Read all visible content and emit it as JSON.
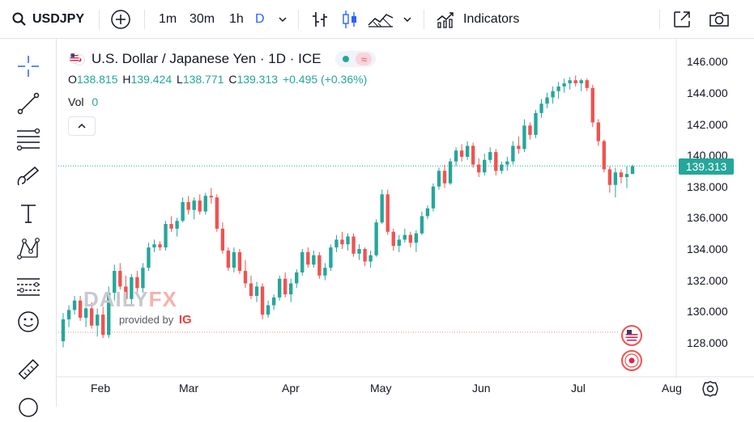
{
  "toolbar": {
    "symbol": "USDJPY",
    "intervals": [
      "1m",
      "30m",
      "1h",
      "D"
    ],
    "active_interval": "D",
    "indicators_label": "Indicators",
    "icons": [
      "search-icon",
      "add-symbol-icon",
      "chevron-down-icon",
      "bar-style-icon",
      "candle-style-icon",
      "area-style-icon",
      "indicators-icon",
      "fullscreen-icon",
      "camera-icon"
    ]
  },
  "left_tools": [
    "crosshair-icon",
    "trend-line-icon",
    "fib-lines-icon",
    "brush-icon",
    "text-icon",
    "pattern-icon",
    "measure-icon",
    "emoji-icon",
    "ruler-icon",
    "magnet-icon"
  ],
  "legend": {
    "title": "U.S. Dollar / Japanese Yen · 1D · ICE",
    "open_label": "O",
    "open": "138.815",
    "high_label": "H",
    "high": "139.424",
    "low_label": "L",
    "low": "138.771",
    "close_label": "C",
    "close": "139.313",
    "change": "+0.495 (+0.36%)",
    "vol_label": "Vol",
    "vol_value": "0"
  },
  "price_axis": [
    "146.000",
    "144.000",
    "142.000",
    "140.000",
    "138.000",
    "136.000",
    "134.000",
    "132.000",
    "130.000",
    "128.000"
  ],
  "last_price": "139.313",
  "time_axis": [
    "Feb",
    "Mar",
    "Apr",
    "May",
    "Jun",
    "Jul",
    "Aug"
  ],
  "watermark": {
    "brand_left": "DAILY",
    "brand_right": "FX",
    "provided_by": "provided by",
    "ig": "IG"
  },
  "colors": {
    "up": "#26a69a",
    "down": "#ef5350",
    "accent": "#2962ff"
  },
  "chart_data": {
    "type": "candlestick",
    "title": "U.S. Dollar / Japanese Yen · 1D · ICE",
    "ylim": [
      127,
      147
    ],
    "x_labels": [
      "Feb",
      "Mar",
      "Apr",
      "May",
      "Jun",
      "Jul",
      "Aug"
    ],
    "ohlc": [
      [
        128.1,
        129.9,
        127.7,
        129.5
      ],
      [
        129.5,
        130.4,
        129.0,
        130.1
      ],
      [
        130.1,
        131.0,
        129.8,
        130.7
      ],
      [
        130.7,
        131.0,
        129.4,
        129.6
      ],
      [
        129.6,
        130.3,
        129.0,
        130.2
      ],
      [
        130.2,
        130.6,
        128.9,
        129.1
      ],
      [
        129.1,
        130.2,
        128.4,
        129.8
      ],
      [
        129.8,
        130.3,
        128.3,
        128.5
      ],
      [
        128.5,
        131.6,
        128.3,
        131.2
      ],
      [
        131.2,
        133.0,
        130.7,
        132.6
      ],
      [
        132.6,
        133.1,
        131.4,
        131.6
      ],
      [
        131.6,
        132.3,
        130.5,
        130.8
      ],
      [
        130.8,
        132.4,
        130.4,
        132.2
      ],
      [
        132.2,
        132.6,
        131.2,
        131.5
      ],
      [
        131.5,
        133.1,
        131.2,
        132.8
      ],
      [
        132.8,
        134.4,
        132.6,
        134.1
      ],
      [
        134.1,
        134.6,
        133.8,
        134.3
      ],
      [
        134.3,
        134.5,
        133.9,
        134.1
      ],
      [
        134.1,
        135.8,
        133.9,
        135.6
      ],
      [
        135.6,
        136.1,
        135.1,
        135.3
      ],
      [
        135.3,
        136.0,
        134.8,
        135.8
      ],
      [
        135.8,
        137.3,
        135.7,
        137.0
      ],
      [
        137.0,
        137.4,
        136.2,
        136.5
      ],
      [
        136.5,
        137.3,
        135.9,
        137.1
      ],
      [
        137.1,
        137.5,
        136.2,
        136.4
      ],
      [
        136.4,
        137.6,
        136.2,
        137.4
      ],
      [
        137.4,
        137.9,
        136.9,
        137.3
      ],
      [
        137.3,
        137.5,
        135.1,
        135.3
      ],
      [
        135.3,
        135.7,
        133.7,
        133.9
      ],
      [
        133.9,
        134.1,
        132.6,
        132.8
      ],
      [
        132.8,
        134.1,
        132.5,
        133.8
      ],
      [
        133.8,
        134.0,
        132.4,
        132.6
      ],
      [
        132.6,
        133.3,
        131.5,
        131.8
      ],
      [
        131.8,
        132.3,
        130.8,
        131.0
      ],
      [
        131.0,
        131.9,
        130.6,
        131.6
      ],
      [
        131.6,
        131.8,
        129.5,
        129.8
      ],
      [
        129.8,
        130.7,
        129.6,
        130.4
      ],
      [
        130.4,
        131.1,
        130.1,
        130.9
      ],
      [
        130.9,
        132.3,
        130.7,
        132.1
      ],
      [
        132.1,
        132.5,
        130.9,
        131.1
      ],
      [
        131.1,
        132.1,
        130.6,
        131.8
      ],
      [
        131.8,
        132.7,
        131.5,
        132.5
      ],
      [
        132.5,
        134.0,
        132.3,
        133.8
      ],
      [
        133.8,
        134.1,
        132.8,
        133.0
      ],
      [
        133.0,
        133.9,
        132.8,
        133.6
      ],
      [
        133.6,
        133.8,
        132.1,
        132.3
      ],
      [
        132.3,
        133.1,
        132.0,
        132.8
      ],
      [
        132.8,
        134.3,
        132.6,
        134.1
      ],
      [
        134.1,
        134.9,
        133.8,
        134.6
      ],
      [
        134.6,
        135.1,
        134.0,
        134.3
      ],
      [
        134.3,
        135.0,
        133.9,
        134.8
      ],
      [
        134.8,
        135.0,
        133.5,
        133.7
      ],
      [
        133.7,
        134.3,
        133.3,
        134.0
      ],
      [
        134.0,
        134.1,
        132.9,
        133.2
      ],
      [
        133.2,
        133.9,
        132.8,
        133.6
      ],
      [
        133.6,
        135.9,
        133.5,
        135.7
      ],
      [
        135.7,
        137.8,
        135.6,
        137.5
      ],
      [
        137.5,
        137.8,
        134.9,
        135.1
      ],
      [
        135.1,
        135.3,
        133.9,
        134.2
      ],
      [
        134.2,
        134.9,
        133.8,
        134.6
      ],
      [
        134.6,
        135.3,
        134.4,
        134.9
      ],
      [
        134.9,
        135.1,
        134.1,
        134.4
      ],
      [
        134.4,
        135.2,
        133.8,
        135.0
      ],
      [
        135.0,
        136.4,
        134.9,
        136.1
      ],
      [
        136.1,
        136.8,
        135.9,
        136.6
      ],
      [
        136.6,
        138.2,
        136.4,
        138.0
      ],
      [
        138.0,
        139.2,
        137.8,
        139.0
      ],
      [
        139.0,
        139.4,
        137.9,
        138.2
      ],
      [
        138.2,
        139.8,
        138.1,
        139.6
      ],
      [
        139.6,
        140.5,
        139.3,
        140.3
      ],
      [
        140.3,
        140.7,
        139.6,
        139.9
      ],
      [
        139.9,
        140.9,
        139.7,
        140.6
      ],
      [
        140.6,
        140.8,
        139.2,
        139.4
      ],
      [
        139.4,
        139.8,
        138.6,
        138.9
      ],
      [
        138.9,
        140.1,
        138.7,
        139.7
      ],
      [
        139.7,
        140.5,
        139.5,
        140.2
      ],
      [
        140.2,
        140.4,
        138.7,
        139.0
      ],
      [
        139.0,
        139.6,
        138.8,
        139.4
      ],
      [
        139.4,
        139.9,
        139.0,
        139.6
      ],
      [
        139.6,
        140.9,
        139.4,
        140.6
      ],
      [
        140.6,
        141.2,
        140.1,
        140.4
      ],
      [
        140.4,
        142.3,
        140.2,
        141.9
      ],
      [
        141.9,
        142.1,
        141.0,
        141.3
      ],
      [
        141.3,
        142.9,
        141.1,
        142.7
      ],
      [
        142.7,
        143.6,
        142.4,
        143.3
      ],
      [
        143.3,
        144.0,
        143.0,
        143.7
      ],
      [
        143.7,
        144.4,
        143.3,
        144.1
      ],
      [
        144.1,
        144.7,
        143.6,
        144.4
      ],
      [
        144.4,
        144.9,
        144.0,
        144.6
      ],
      [
        144.6,
        145.0,
        144.2,
        144.8
      ],
      [
        144.8,
        145.1,
        144.4,
        144.6
      ],
      [
        144.6,
        144.9,
        144.1,
        144.8
      ],
      [
        144.8,
        144.9,
        144.1,
        144.3
      ],
      [
        144.3,
        144.5,
        141.8,
        142.1
      ],
      [
        142.1,
        142.3,
        140.6,
        140.9
      ],
      [
        140.9,
        141.0,
        138.9,
        139.1
      ],
      [
        139.1,
        139.3,
        137.6,
        138.1
      ],
      [
        138.1,
        139.2,
        137.3,
        138.9
      ],
      [
        138.9,
        139.1,
        138.2,
        138.6
      ],
      [
        138.6,
        139.3,
        137.9,
        138.8
      ],
      [
        138.8,
        139.4,
        138.8,
        139.3
      ]
    ]
  }
}
